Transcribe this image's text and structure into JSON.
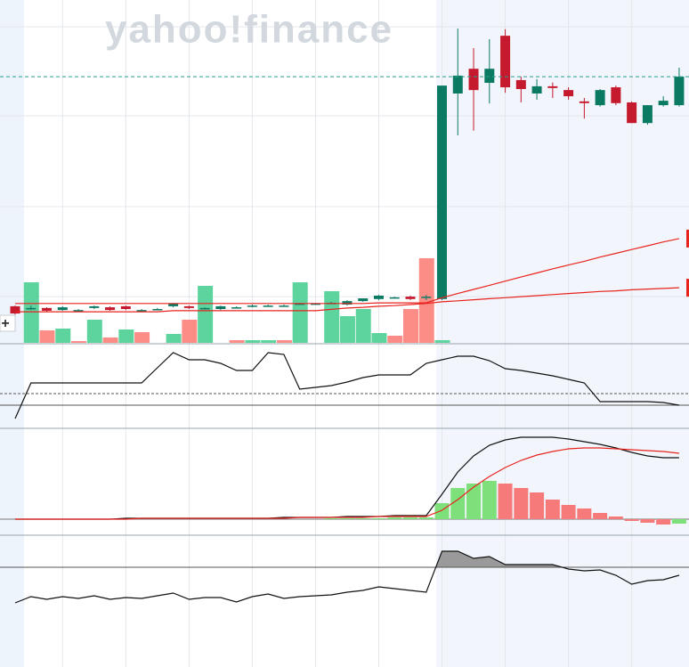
{
  "watermark": "yahoo!finance",
  "button": "+",
  "chart_data": [
    {
      "type": "candlestick",
      "ylim": [
        0,
        100
      ],
      "ygrid": [
        92.2,
        66.3,
        39.9,
        13.7
      ],
      "color_up": "#0b7a63",
      "color_down": "#c5192d",
      "last_price_color": "#2a9d8f",
      "open": [
        10.9,
        10.4,
        10.4,
        9.8,
        9.8,
        10.4,
        10.6,
        10.9,
        9.8,
        10.1,
        10.9,
        10.9,
        10.4,
        10.1,
        10.6,
        10.9,
        11.1,
        11.1,
        11.7,
        11.7,
        11.9,
        11.4,
        12.4,
        13,
        13.5,
        13.7,
        13.7,
        13,
        72.8,
        80,
        75.9,
        89.6,
        76.7,
        72.8,
        74.9,
        73.8,
        70.5,
        69.4,
        74.6,
        70.2,
        64.2,
        69.4,
        69.4
      ],
      "high": [
        11.1,
        11.1,
        10.6,
        10.9,
        10.1,
        11.1,
        10.9,
        11.1,
        10.1,
        10.4,
        11.9,
        11.1,
        10.6,
        11.1,
        10.9,
        11.4,
        11.4,
        11.4,
        11.9,
        11.9,
        12.2,
        12.7,
        13.2,
        14.2,
        13.7,
        14,
        14.2,
        75.1,
        91.7,
        86,
        88.6,
        91.5,
        77.7,
        77,
        76,
        74.6,
        71.5,
        74.1,
        75.1,
        70.5,
        69.4,
        72,
        80.3
      ],
      "low": [
        8.5,
        9.8,
        9.3,
        9.6,
        9.6,
        10.1,
        9.6,
        9.8,
        9.6,
        9.8,
        10.6,
        10.1,
        10.1,
        9.8,
        10.4,
        10.6,
        10.9,
        10.9,
        11.4,
        11.4,
        11.7,
        11.1,
        12.2,
        12.7,
        13.2,
        12.7,
        12.7,
        12.7,
        60.6,
        62,
        69.9,
        73,
        70.2,
        71,
        71.5,
        71,
        65.5,
        69,
        69.4,
        64.2,
        63.7,
        69,
        69
      ],
      "close": [
        8.8,
        10.4,
        9.6,
        10.6,
        9.8,
        10.9,
        9.8,
        10.1,
        9.8,
        10.1,
        11.7,
        10.4,
        10.4,
        10.9,
        10.6,
        11.1,
        11.1,
        11.1,
        11.7,
        11.7,
        11.9,
        12.4,
        13.2,
        14,
        13.5,
        13,
        13.7,
        75.1,
        78,
        73.8,
        80,
        74.6,
        74.1,
        74.9,
        74.4,
        72,
        70,
        73.8,
        70,
        64.2,
        69.4,
        70.7,
        77.7
      ],
      "series": [
        {
          "color": "#e8231e",
          "values": [
            11.7,
            11.7,
            11.7,
            11.7,
            11.7,
            11.7,
            11.7,
            11.7,
            11.7,
            11.7,
            11.7,
            11.7,
            11.7,
            11.7,
            11.7,
            11.7,
            11.7,
            11.7,
            11.7,
            11.7,
            11.7,
            11.7,
            11.7,
            11.9,
            11.9,
            11.9,
            11.9,
            13.4,
            14.6,
            15.8,
            17,
            18.2,
            19.4,
            20.6,
            21.8,
            22.9,
            24,
            25.2,
            26.3,
            27.4,
            28.5,
            29.6,
            30.6
          ]
        },
        {
          "color": "#e8231e",
          "values": [
            9.3,
            9.3,
            9.3,
            9.3,
            9.3,
            9.3,
            9.3,
            9.3,
            9.3,
            9.3,
            9.6,
            9.6,
            9.6,
            9.6,
            9.6,
            9.6,
            9.6,
            9.6,
            9.6,
            9.6,
            10,
            10.4,
            10.6,
            10.9,
            11.1,
            11.4,
            11.7,
            12.2,
            12.5,
            12.8,
            13.1,
            13.4,
            13.7,
            14,
            14.3,
            14.6,
            14.9,
            15.2,
            15.4,
            15.7,
            15.9,
            16.1,
            16.3
          ]
        }
      ]
    },
    {
      "type": "bar",
      "ylim": [
        0,
        100
      ],
      "values": [
        0,
        68,
        14,
        16,
        2,
        26,
        6,
        15,
        12,
        0,
        10,
        26,
        64,
        0,
        3,
        3,
        3,
        3,
        68,
        0,
        58,
        30,
        38,
        11,
        8,
        38,
        95,
        3,
        0,
        0,
        0,
        0,
        0,
        0,
        0,
        0,
        0,
        0,
        0,
        0,
        0,
        0,
        0
      ],
      "colors": [
        "#5dd39e",
        "#5dd39e",
        "#fb8d86",
        "#5dd39e",
        "#fb8d86",
        "#5dd39e",
        "#fb8d86",
        "#5dd39e",
        "#fb8d86",
        "#5dd39e",
        "#5dd39e",
        "#fb8d86",
        "#5dd39e",
        "#5dd39e",
        "#fb8d86",
        "#5dd39e",
        "#5dd39e",
        "#fb8d86",
        "#5dd39e",
        "#5dd39e",
        "#5dd39e",
        "#5dd39e",
        "#5dd39e",
        "#5dd39e",
        "#fb8d86",
        "#fb8d86",
        "#fb8d86",
        "#5dd39e",
        "#5dd39e",
        "#5dd39e",
        "#5dd39e",
        "#5dd39e",
        "#5dd39e",
        "#5dd39e",
        "#5dd39e",
        "#5dd39e",
        "#5dd39e",
        "#5dd39e",
        "#5dd39e",
        "#5dd39e",
        "#5dd39e",
        "#5dd39e",
        "#5dd39e"
      ]
    },
    {
      "type": "line",
      "ylim": [
        0,
        100
      ],
      "levels": [
        40.9,
        26.9
      ],
      "color": "#111111",
      "values": [
        10.8,
        53.8,
        53.8,
        53.8,
        53.8,
        53.8,
        53.8,
        53.8,
        53.8,
        72,
        90.3,
        81.7,
        81.7,
        77.4,
        68.8,
        68.8,
        90.3,
        88.2,
        46.2,
        48.4,
        50.5,
        54.8,
        60.2,
        63.4,
        63.4,
        63.4,
        77.4,
        81.7,
        86,
        86,
        80.6,
        71,
        68.8,
        65.6,
        62.4,
        58.1,
        53.8,
        31.2,
        31.2,
        31.2,
        31.2,
        30.1,
        26.9
      ]
    },
    {
      "type": "macd",
      "ylim": [
        -17,
        101
      ],
      "color_up": "#7ee07a",
      "color_down": "#f67a7a",
      "histogram": [
        0,
        0,
        0,
        0,
        0,
        0,
        0,
        0,
        0,
        0,
        0,
        0,
        0,
        0,
        0,
        0,
        0,
        0,
        0,
        0,
        1,
        1,
        1,
        1,
        2,
        2,
        2,
        18,
        35,
        40,
        43,
        40,
        35,
        30,
        22,
        16,
        12,
        7,
        3,
        -2,
        -4,
        -6,
        -5
      ],
      "series": [
        {
          "color": "#111111",
          "values": [
            0,
            0,
            0,
            0,
            0,
            0,
            0,
            1,
            1,
            1,
            1,
            1,
            1,
            1,
            1,
            1,
            1,
            2,
            2,
            2,
            2,
            3,
            3,
            3,
            4,
            4,
            4,
            28,
            53,
            71,
            83,
            89,
            92,
            92,
            92,
            90,
            87,
            84,
            80,
            75,
            71,
            69,
            69
          ]
        },
        {
          "color": "#e8231e",
          "values": [
            0,
            0,
            0,
            0,
            0,
            0,
            0,
            0,
            1,
            1,
            1,
            1,
            1,
            1,
            1,
            1,
            1,
            1,
            2,
            2,
            2,
            2,
            2,
            3,
            3,
            3,
            3,
            10,
            22,
            36,
            48,
            58,
            66,
            72,
            76,
            79,
            80,
            80,
            79,
            78,
            77,
            76,
            74
          ]
        }
      ]
    },
    {
      "type": "area",
      "ylim": [
        0,
        147
      ],
      "level": 112,
      "color": "#111111",
      "fill": "#9a9a9a",
      "values": [
        72,
        79,
        76,
        79,
        77,
        80,
        76,
        78,
        77,
        80,
        83,
        76,
        78,
        78,
        73,
        79,
        82,
        77,
        79,
        80,
        81,
        84,
        86,
        90,
        88,
        86,
        84,
        130,
        130,
        122,
        124,
        115,
        115,
        115,
        115,
        110,
        108,
        109,
        103,
        93,
        97,
        98,
        103
      ]
    }
  ]
}
